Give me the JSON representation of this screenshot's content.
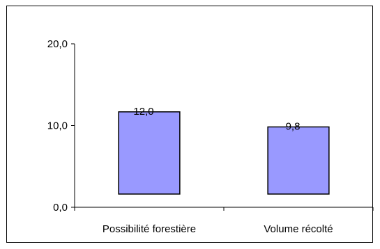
{
  "chart_data": {
    "type": "bar",
    "title": "",
    "xlabel": "",
    "ylabel": "",
    "categories": [
      "Possibilité forestière",
      "Volume récolté"
    ],
    "values": [
      12.0,
      9.8
    ],
    "data_labels": [
      "12,0",
      "9,8"
    ],
    "ylim": [
      0,
      20
    ],
    "yticks": [
      0,
      10,
      20
    ],
    "ytick_labels": [
      "0,0",
      "10,0",
      "20,0"
    ],
    "grid": false,
    "legend": "none",
    "bar_color": "#9999ff",
    "bar_edge_color": "#000000"
  }
}
